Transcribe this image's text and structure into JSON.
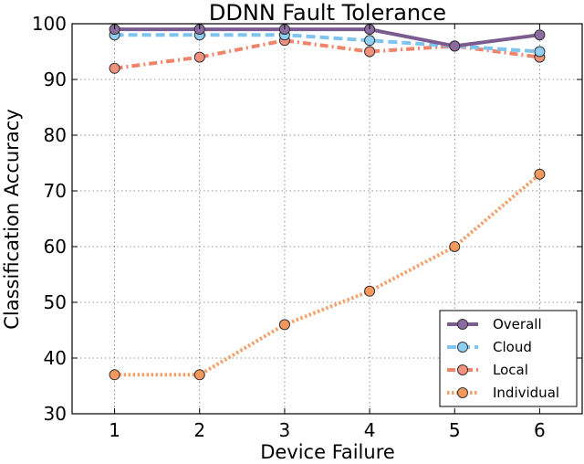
{
  "chart_data": {
    "type": "line",
    "title": "DDNN Fault Tolerance",
    "xlabel": "Device Failure",
    "ylabel": "Classification Accuracy",
    "x": [
      1,
      2,
      3,
      4,
      5,
      6
    ],
    "xlim": [
      0.5,
      6.5
    ],
    "ylim": [
      30,
      100
    ],
    "yticks": [
      30,
      40,
      50,
      60,
      70,
      80,
      90,
      100
    ],
    "grid": true,
    "legend_position": "bottom-right",
    "series": [
      {
        "name": "Overall",
        "values": [
          99,
          99,
          99,
          99,
          96,
          98
        ],
        "color": "#7b5c91",
        "marker_color": "#8c6ca0",
        "style": "solid"
      },
      {
        "name": "Cloud",
        "values": [
          98,
          98,
          98,
          97,
          96,
          95
        ],
        "color": "#7ec4ee",
        "marker_color": "#8fd0f2",
        "style": "dashed"
      },
      {
        "name": "Local",
        "values": [
          92,
          94,
          97,
          95,
          96,
          94
        ],
        "color": "#f0846b",
        "marker_color": "#f2917c",
        "style": "dashdot"
      },
      {
        "name": "Individual",
        "values": [
          37,
          37,
          46,
          52,
          60,
          73
        ],
        "color": "#f5a06a",
        "marker_color": "#f4985e",
        "style": "dotted"
      }
    ]
  }
}
